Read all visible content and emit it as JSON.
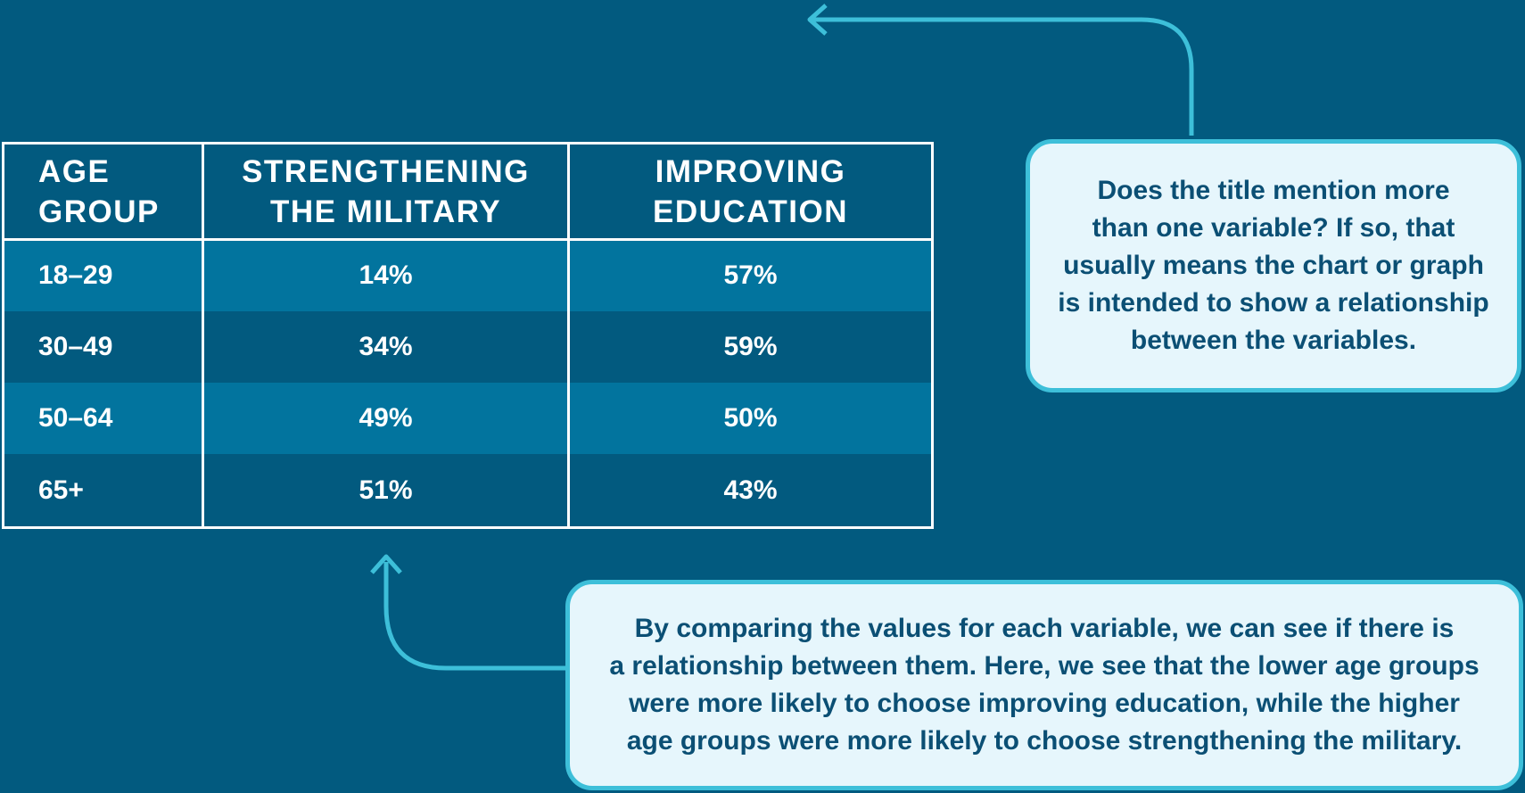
{
  "chart_data": {
    "type": "table",
    "columns": [
      "AGE GROUP",
      "STRENGTHENING THE MILITARY",
      "IMPROVING EDUCATION"
    ],
    "header_lines": [
      [
        "AGE",
        "GROUP"
      ],
      [
        "STRENGTHENING",
        "THE MILITARY"
      ],
      [
        "IMPROVING",
        "EDUCATION"
      ]
    ],
    "rows": [
      {
        "age": "18–29",
        "military": "14%",
        "education": "57%"
      },
      {
        "age": "30–49",
        "military": "34%",
        "education": "59%"
      },
      {
        "age": "50–64",
        "military": "49%",
        "education": "50%"
      },
      {
        "age": "65+",
        "military": "51%",
        "education": "43%"
      }
    ],
    "series": [
      {
        "name": "Strengthening the military",
        "values": [
          14,
          34,
          49,
          51
        ]
      },
      {
        "name": "Improving education",
        "values": [
          57,
          59,
          50,
          43
        ]
      }
    ],
    "categories": [
      "18–29",
      "30–49",
      "50–64",
      "65+"
    ]
  },
  "callouts": {
    "top": {
      "lines": [
        "Does the title mention more",
        "than one variable? If so, that",
        "usually means the chart or graph",
        "is intended to show a relationship",
        "between the variables."
      ]
    },
    "bottom": {
      "lines": [
        "By comparing the values for each variable, we can see if there is",
        "a relationship between them. Here, we see that the lower age groups",
        "were more likely to choose improving education, while the higher",
        "age groups were more likely to choose strengthening the military."
      ]
    }
  },
  "colors": {
    "background": "#025a7f",
    "row_light": "#02749e",
    "callout_fill": "#e6f6fc",
    "accent": "#3dbfd9",
    "callout_text": "#0b4f74"
  }
}
